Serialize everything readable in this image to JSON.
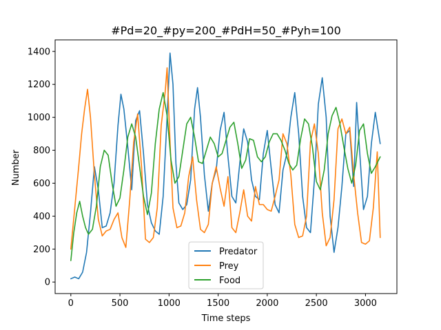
{
  "chart_data": {
    "type": "line",
    "title": "#Pd=20_#py=200_#PdH=50_#Pyh=100",
    "xlabel": "Time steps",
    "ylabel": "Number",
    "xlim": [
      -160,
      3320
    ],
    "ylim": [
      -70,
      1470
    ],
    "xticks": [
      0,
      500,
      1000,
      1500,
      2000,
      2500,
      3000
    ],
    "yticks": [
      0,
      200,
      400,
      600,
      800,
      1000,
      1200,
      1400
    ],
    "grid": false,
    "legend_position": "lower center",
    "series": [
      {
        "name": "Predator",
        "color": "#1f77b4",
        "x": [
          0,
          40,
          80,
          120,
          160,
          200,
          240,
          280,
          320,
          360,
          400,
          440,
          480,
          510,
          540,
          580,
          620,
          660,
          700,
          740,
          780,
          820,
          860,
          900,
          940,
          980,
          1010,
          1040,
          1070,
          1100,
          1140,
          1180,
          1220,
          1260,
          1290,
          1320,
          1360,
          1400,
          1440,
          1480,
          1520,
          1560,
          1600,
          1640,
          1680,
          1720,
          1760,
          1800,
          1840,
          1880,
          1920,
          1960,
          2000,
          2040,
          2080,
          2120,
          2160,
          2200,
          2240,
          2280,
          2320,
          2360,
          2400,
          2440,
          2480,
          2520,
          2560,
          2600,
          2640,
          2680,
          2720,
          2760,
          2800,
          2840,
          2880,
          2910,
          2940,
          2980,
          3020,
          3060,
          3100,
          3150
        ],
        "values": [
          20,
          30,
          20,
          60,
          180,
          420,
          700,
          560,
          330,
          340,
          420,
          600,
          950,
          1140,
          1050,
          820,
          560,
          980,
          1040,
          780,
          470,
          360,
          310,
          290,
          520,
          1000,
          1390,
          1200,
          720,
          480,
          440,
          470,
          620,
          1050,
          1180,
          1000,
          650,
          430,
          600,
          680,
          920,
          1030,
          760,
          520,
          480,
          720,
          930,
          850,
          620,
          520,
          500,
          780,
          920,
          690,
          470,
          420,
          680,
          780,
          1000,
          1150,
          900,
          520,
          330,
          300,
          620,
          1080,
          1240,
          1000,
          400,
          180,
          330,
          580,
          900,
          920,
          580,
          1090,
          800,
          440,
          520,
          840,
          1030,
          840
        ]
      },
      {
        "name": "Prey",
        "color": "#ff7f0e",
        "x": [
          0,
          40,
          80,
          110,
          140,
          170,
          200,
          240,
          280,
          320,
          360,
          400,
          440,
          480,
          520,
          560,
          600,
          640,
          680,
          720,
          760,
          800,
          840,
          880,
          920,
          960,
          980,
          1010,
          1040,
          1080,
          1120,
          1160,
          1200,
          1240,
          1280,
          1320,
          1360,
          1400,
          1440,
          1480,
          1520,
          1560,
          1600,
          1640,
          1680,
          1720,
          1760,
          1800,
          1840,
          1880,
          1920,
          1960,
          2000,
          2040,
          2080,
          2120,
          2160,
          2200,
          2240,
          2280,
          2320,
          2360,
          2400,
          2440,
          2480,
          2520,
          2560,
          2600,
          2640,
          2680,
          2720,
          2760,
          2800,
          2840,
          2880,
          2920,
          2960,
          3000,
          3040,
          3080,
          3120,
          3150
        ],
        "values": [
          200,
          450,
          700,
          900,
          1050,
          1170,
          1000,
          650,
          380,
          280,
          310,
          320,
          380,
          420,
          270,
          210,
          500,
          850,
          1020,
          700,
          260,
          240,
          270,
          450,
          950,
          1150,
          1300,
          850,
          450,
          330,
          340,
          420,
          640,
          760,
          500,
          320,
          300,
          350,
          600,
          700,
          570,
          460,
          640,
          330,
          300,
          420,
          560,
          400,
          370,
          580,
          470,
          470,
          440,
          430,
          520,
          620,
          900,
          840,
          650,
          350,
          270,
          280,
          400,
          850,
          960,
          780,
          420,
          220,
          270,
          500,
          930,
          990,
          900,
          940,
          650,
          420,
          240,
          230,
          250,
          450,
          790,
          270
        ]
      },
      {
        "name": "Food",
        "color": "#2ca02c",
        "x": [
          0,
          30,
          60,
          90,
          120,
          150,
          180,
          220,
          260,
          300,
          340,
          380,
          420,
          460,
          500,
          540,
          580,
          620,
          660,
          700,
          740,
          780,
          820,
          860,
          900,
          940,
          980,
          1020,
          1060,
          1100,
          1140,
          1180,
          1220,
          1260,
          1300,
          1340,
          1380,
          1420,
          1460,
          1500,
          1540,
          1580,
          1620,
          1660,
          1700,
          1740,
          1780,
          1820,
          1860,
          1900,
          1940,
          1980,
          2020,
          2060,
          2100,
          2140,
          2180,
          2220,
          2260,
          2300,
          2340,
          2380,
          2420,
          2460,
          2500,
          2540,
          2580,
          2620,
          2660,
          2700,
          2740,
          2780,
          2820,
          2860,
          2900,
          2940,
          2980,
          3020,
          3060,
          3100,
          3150
        ],
        "values": [
          130,
          300,
          420,
          490,
          400,
          330,
          290,
          320,
          460,
          700,
          800,
          770,
          600,
          460,
          510,
          680,
          880,
          960,
          880,
          700,
          520,
          410,
          540,
          840,
          1050,
          1150,
          1010,
          740,
          600,
          640,
          800,
          960,
          1000,
          880,
          730,
          720,
          800,
          880,
          840,
          760,
          780,
          860,
          940,
          970,
          840,
          690,
          740,
          870,
          860,
          760,
          730,
          760,
          850,
          900,
          900,
          860,
          800,
          720,
          680,
          710,
          870,
          990,
          960,
          820,
          610,
          560,
          680,
          900,
          1010,
          1060,
          960,
          820,
          690,
          600,
          710,
          920,
          960,
          780,
          660,
          700,
          760
        ]
      }
    ]
  }
}
